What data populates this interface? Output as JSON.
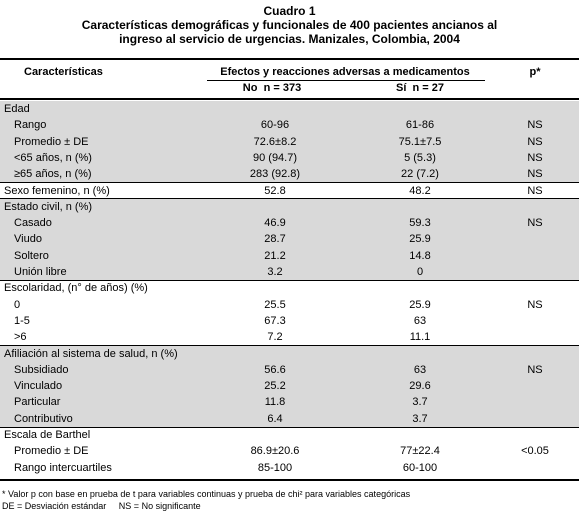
{
  "header": {
    "number": "Cuadro 1",
    "title": "Características demográficas y funcionales de 400 pacientes ancianos al ingreso al servicio de urgencias. Manizales, Colombia, 2004"
  },
  "table": {
    "columns": {
      "characteristic": "Características",
      "group": "Efectos y reacciones adversas a medicamentos",
      "no": "No  n = 373",
      "si": "Sí  n = 27",
      "p": "p*"
    },
    "sections": [
      {
        "label": "Edad",
        "rows": [
          {
            "label": "Rango",
            "no": "60-96",
            "si": "61-86",
            "p": "NS"
          },
          {
            "label": "Promedio ± DE",
            "no": "72.6±8.2",
            "si": "75.1±7.5",
            "p": "NS"
          },
          {
            "label": "<65 años, n (%)",
            "no": "90 (94.7)",
            "si": "5 (5.3)",
            "p": "NS"
          },
          {
            "label": "≥65 años, n (%)",
            "no": "283 (92.8)",
            "si": "22 (7.2)",
            "p": "NS"
          }
        ]
      },
      {
        "label": "Sexo femenino, n (%)",
        "no": "52.8",
        "si": "48.2",
        "p": "NS",
        "rows": []
      },
      {
        "label": "Estado civil, n (%)",
        "rows": [
          {
            "label": "Casado",
            "no": "46.9",
            "si": "59.3",
            "p": "NS"
          },
          {
            "label": "Viudo",
            "no": "28.7",
            "si": "25.9"
          },
          {
            "label": "Soltero",
            "no": "21.2",
            "si": "14.8"
          },
          {
            "label": "Unión libre",
            "no": "3.2",
            "si": "0"
          }
        ]
      },
      {
        "label": "Escolaridad, (n° de años) (%)",
        "rows": [
          {
            "label": "0",
            "no": "25.5",
            "si": "25.9",
            "p": "NS"
          },
          {
            "label": "1-5",
            "no": "67.3",
            "si": "63"
          },
          {
            "label": ">6",
            "no": "7.2",
            "si": "11.1"
          }
        ]
      },
      {
        "label": "Afiliación al sistema de salud, n (%)",
        "rows": [
          {
            "label": "Subsidiado",
            "no": "56.6",
            "si": "63",
            "p": "NS"
          },
          {
            "label": "Vinculado",
            "no": "25.2",
            "si": "29.6"
          },
          {
            "label": "Particular",
            "no": "11.8",
            "si": "3.7"
          },
          {
            "label": "Contributivo",
            "no": "6.4",
            "si": "3.7"
          }
        ]
      },
      {
        "label": "Escala de Barthel",
        "rows": [
          {
            "label": "Promedio ± DE",
            "no": "86.9±20.6",
            "si": "77±22.4",
            "p": "<0.05"
          },
          {
            "label": "Rango intercuartiles",
            "no": "85-100",
            "si": "60-100"
          }
        ]
      }
    ]
  },
  "footnotes": [
    "* Valor p con base en prueba de t para variables continuas y prueba de chi² para variables categóricas",
    "DE = Desviación estándar     NS = No significante"
  ]
}
